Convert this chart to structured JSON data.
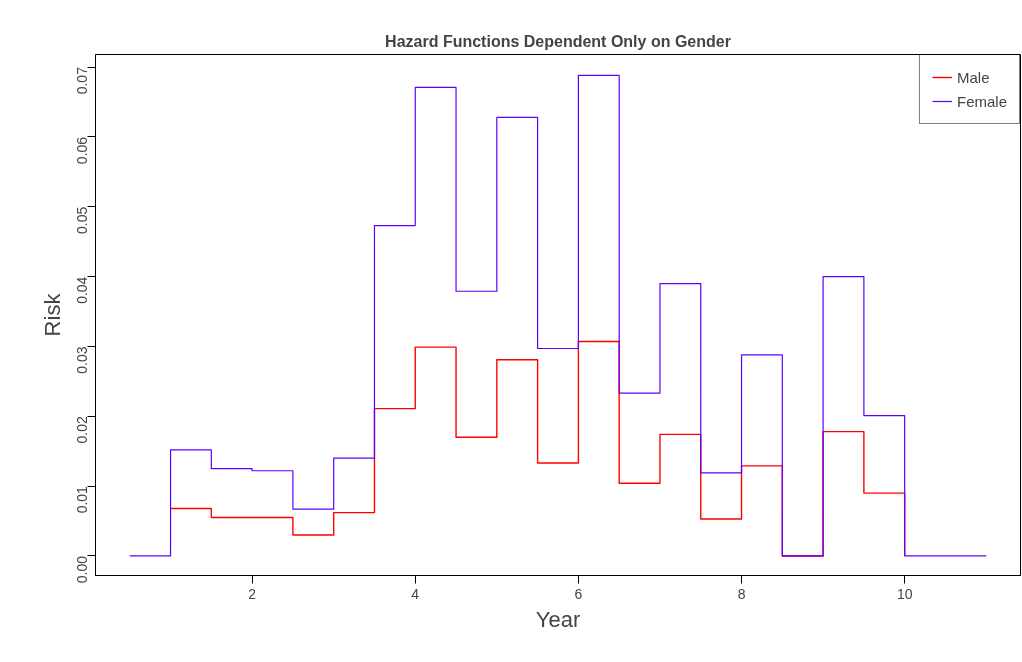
{
  "chart_data": {
    "type": "step",
    "title": "Hazard Functions Dependent Only on Gender",
    "xlabel": "Year",
    "ylabel": "Risk",
    "x": [
      0.5,
      1,
      1.5,
      2,
      2.5,
      3,
      3.5,
      4,
      4.5,
      5,
      5.5,
      6,
      6.5,
      7,
      7.5,
      8,
      8.5,
      9,
      9.5,
      10,
      10.5,
      11
    ],
    "series": [
      {
        "name": "Male",
        "color": "#ff0000",
        "values": [
          null,
          0.0068,
          0.0055,
          0.0055,
          0.003,
          0.0062,
          0.0211,
          0.0299,
          0.017,
          0.0281,
          0.0133,
          0.0307,
          0.0104,
          0.0174,
          0.0053,
          0.0129,
          0,
          0.0178,
          0.009,
          0,
          null,
          null
        ]
      },
      {
        "name": "Female",
        "color": "#5f00ff",
        "values": [
          0,
          0.0152,
          0.0125,
          0.0122,
          0.0067,
          0.014,
          0.0473,
          0.0671,
          0.0379,
          0.0628,
          0.0297,
          0.0688,
          0.0233,
          0.039,
          0.0119,
          0.0288,
          0,
          0.04,
          0.0201,
          0,
          0,
          0
        ]
      }
    ],
    "xlim": [
      0.08,
      11.42
    ],
    "xticks": [
      2,
      4,
      6,
      8,
      10
    ],
    "ylim": [
      -0.0028,
      0.0718
    ],
    "yticks": [
      {
        "value": 0,
        "label": "0.00"
      },
      {
        "value": 0.01,
        "label": "0.01"
      },
      {
        "value": 0.02,
        "label": "0.02"
      },
      {
        "value": 0.03,
        "label": "0.03"
      },
      {
        "value": 0.04,
        "label": "0.04"
      },
      {
        "value": 0.05,
        "label": "0.05"
      },
      {
        "value": 0.06,
        "label": "0.06"
      },
      {
        "value": 0.07,
        "label": "0.07"
      }
    ],
    "grid": false,
    "legend": "top right",
    "marker": "none",
    "line_style": "solid"
  }
}
